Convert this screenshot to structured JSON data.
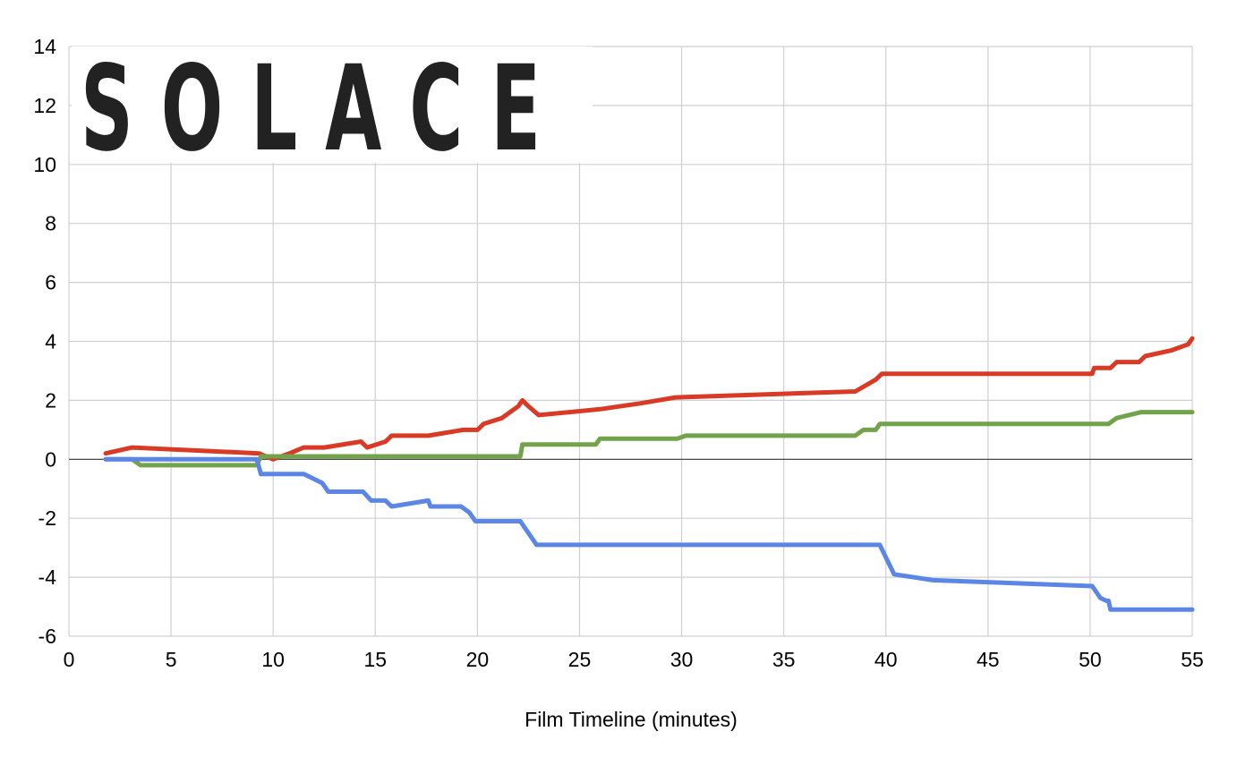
{
  "colors": {
    "red": "#d93a26",
    "green": "#72a34a",
    "blue": "#5b86e5",
    "grid": "#d0d0d0",
    "zero": "#333333",
    "logo": "#222222"
  },
  "logo_text": "SOLACE",
  "chart_data": {
    "type": "line",
    "title": "",
    "xlabel": "Film Timeline (minutes)",
    "ylabel": "",
    "xlim": [
      0,
      55
    ],
    "ylim": [
      -6,
      14
    ],
    "xticks": [
      0,
      5,
      10,
      15,
      20,
      25,
      30,
      35,
      40,
      45,
      50,
      55
    ],
    "yticks": [
      -6,
      -4,
      -2,
      0,
      2,
      4,
      6,
      8,
      10,
      12,
      14
    ],
    "grid": true,
    "legend": "none",
    "series": [
      {
        "color": "red",
        "points": [
          [
            1.8,
            0.2
          ],
          [
            3.1,
            0.4
          ],
          [
            9.3,
            0.2
          ],
          [
            10.0,
            0.0
          ],
          [
            10.8,
            0.2
          ],
          [
            11.5,
            0.4
          ],
          [
            12.5,
            0.4
          ],
          [
            14.3,
            0.6
          ],
          [
            14.6,
            0.4
          ],
          [
            15.5,
            0.6
          ],
          [
            15.8,
            0.8
          ],
          [
            17.6,
            0.8
          ],
          [
            19.3,
            1.0
          ],
          [
            20.0,
            1.0
          ],
          [
            20.3,
            1.2
          ],
          [
            21.2,
            1.4
          ],
          [
            22.0,
            1.8
          ],
          [
            22.2,
            2.0
          ],
          [
            22.5,
            1.8
          ],
          [
            23.0,
            1.5
          ],
          [
            26.0,
            1.7
          ],
          [
            28.0,
            1.9
          ],
          [
            29.7,
            2.1
          ],
          [
            38.5,
            2.3
          ],
          [
            39.5,
            2.7
          ],
          [
            39.8,
            2.9
          ],
          [
            50.1,
            2.9
          ],
          [
            50.2,
            3.1
          ],
          [
            51.0,
            3.1
          ],
          [
            51.3,
            3.3
          ],
          [
            52.4,
            3.3
          ],
          [
            52.7,
            3.5
          ],
          [
            54.0,
            3.7
          ],
          [
            54.8,
            3.9
          ],
          [
            55.0,
            4.1
          ]
        ]
      },
      {
        "color": "green",
        "points": [
          [
            1.8,
            0.0
          ],
          [
            3.1,
            0.0
          ],
          [
            3.5,
            -0.2
          ],
          [
            9.2,
            -0.2
          ],
          [
            9.4,
            0.1
          ],
          [
            22.1,
            0.1
          ],
          [
            22.2,
            0.5
          ],
          [
            25.8,
            0.5
          ],
          [
            26.0,
            0.7
          ],
          [
            29.8,
            0.7
          ],
          [
            30.2,
            0.8
          ],
          [
            38.5,
            0.8
          ],
          [
            38.9,
            1.0
          ],
          [
            39.5,
            1.0
          ],
          [
            39.7,
            1.2
          ],
          [
            50.9,
            1.2
          ],
          [
            51.3,
            1.4
          ],
          [
            52.5,
            1.6
          ],
          [
            55.0,
            1.6
          ]
        ]
      },
      {
        "color": "blue",
        "points": [
          [
            1.8,
            0.0
          ],
          [
            9.2,
            0.0
          ],
          [
            9.4,
            -0.5
          ],
          [
            11.5,
            -0.5
          ],
          [
            12.4,
            -0.8
          ],
          [
            12.7,
            -1.1
          ],
          [
            14.4,
            -1.1
          ],
          [
            14.8,
            -1.4
          ],
          [
            15.5,
            -1.4
          ],
          [
            15.8,
            -1.6
          ],
          [
            17.6,
            -1.4
          ],
          [
            17.7,
            -1.6
          ],
          [
            19.2,
            -1.6
          ],
          [
            19.6,
            -1.8
          ],
          [
            19.9,
            -2.1
          ],
          [
            22.1,
            -2.1
          ],
          [
            22.9,
            -2.9
          ],
          [
            39.7,
            -2.9
          ],
          [
            40.4,
            -3.9
          ],
          [
            42.3,
            -4.1
          ],
          [
            50.1,
            -4.3
          ],
          [
            50.5,
            -4.7
          ],
          [
            50.8,
            -4.8
          ],
          [
            50.9,
            -4.8
          ],
          [
            51.0,
            -5.1
          ],
          [
            55.0,
            -5.1
          ]
        ]
      }
    ]
  }
}
